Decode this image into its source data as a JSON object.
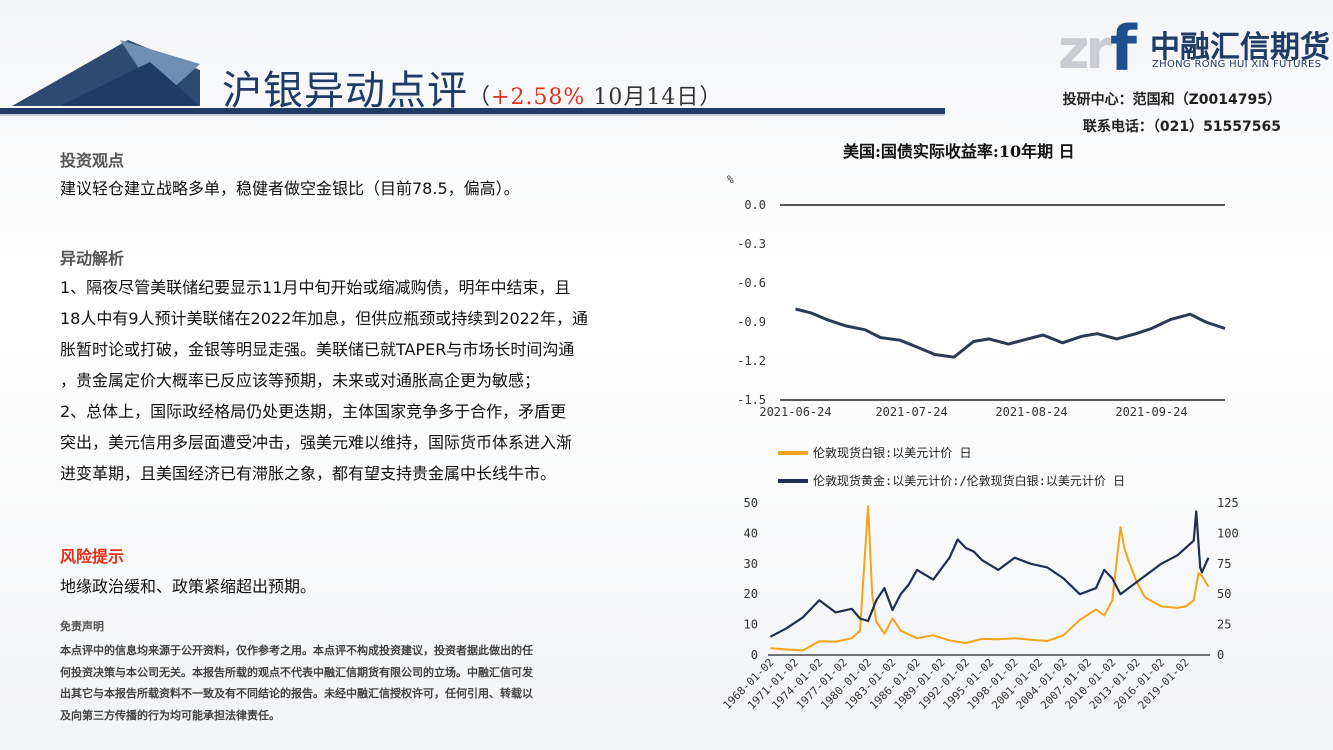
{
  "header": {
    "title": "沪银异动点评",
    "paren_open": "（",
    "change": "+2.58%",
    "date": " 10月14日",
    "paren_close": "）",
    "logo_cn": "中融汇信期货",
    "logo_en": "ZHONG RONG HUI XIN FUTURES",
    "author": "投研中心：范国和（Z0014795）",
    "phone": "联系电话：（021）51557565",
    "colors": {
      "navy": "#1f3b66",
      "accent_red": "#e0301e",
      "gold": "#f5a31a"
    }
  },
  "left": {
    "view_heading": "投资观点",
    "view_text": "建议轻仓建立战略多单，稳健者做空金银比（目前78.5，偏高）。",
    "analysis_heading": "异动解析",
    "analysis_lines": [
      "1、隔夜尽管美联储纪要显示11月中旬开始或缩减购债，明年中结束，且",
      "18人中有9人预计美联储在2022年加息，但供应瓶颈或持续到2022年，通",
      "胀暂时论或打破，金银等明显走强。美联储已就TAPER与市场长时间沟通",
      "，贵金属定价大概率已反应该等预期，未来或对通胀高企更为敏感；",
      "2、总体上，国际政经格局仍处更迭期，主体国家竞争多于合作，矛盾更",
      "突出，美元信用多层面遭受冲击，强美元难以维持，国际货币体系进入渐",
      "进变革期，且美国经济已有滞胀之象，都有望支持贵金属中长线牛市。"
    ],
    "risk_heading": "风险提示",
    "risk_text": "地缘政治缓和、政策紧缩超出预期。",
    "disclaimer_heading": "免责声明",
    "disclaimer_lines": [
      "本点评中的信息均来源于公开资料，仅作参考之用。本点评不构成投资建议，投资者据此做出的任",
      "何投资决策与本公司无关。本报告所载的观点不代表中融汇信期货有限公司的立场。中融汇信可发",
      "出其它与本报告所载资料不一致及有不同结论的报告。未经中融汇信授权许可，任何引用、转载以",
      "及向第三方传播的行为均可能承担法律责任。"
    ]
  },
  "chart_data": [
    {
      "type": "line",
      "title": "美国:国债实际收益率:10年期 日",
      "ylabel": "%",
      "ylim": [
        -1.5,
        0.0
      ],
      "yticks": [
        "0.0",
        "-0.3",
        "-0.6",
        "-0.9",
        "-1.2",
        "-1.5"
      ],
      "xticks": [
        "2021-06-24",
        "2021-07-24",
        "2021-08-24",
        "2021-09-24"
      ],
      "series": [
        {
          "color": "#2b3a55",
          "x": [
            "2021-06-24",
            "2021-06-28",
            "2021-07-02",
            "2021-07-07",
            "2021-07-12",
            "2021-07-16",
            "2021-07-21",
            "2021-07-26",
            "2021-07-30",
            "2021-08-04",
            "2021-08-09",
            "2021-08-13",
            "2021-08-18",
            "2021-08-23",
            "2021-08-27",
            "2021-09-01",
            "2021-09-06",
            "2021-09-10",
            "2021-09-15",
            "2021-09-20",
            "2021-09-24",
            "2021-09-29",
            "2021-10-04",
            "2021-10-08",
            "2021-10-13"
          ],
          "values": [
            -0.8,
            -0.83,
            -0.88,
            -0.93,
            -0.96,
            -1.02,
            -1.04,
            -1.1,
            -1.15,
            -1.17,
            -1.05,
            -1.03,
            -1.07,
            -1.03,
            -1.0,
            -1.06,
            -1.01,
            -0.99,
            -1.03,
            -0.99,
            -0.95,
            -0.88,
            -0.84,
            -0.9,
            -0.95
          ]
        }
      ]
    },
    {
      "type": "line",
      "legend": [
        "伦敦现货白银:以美元计价 日",
        "伦敦现货黄金:以美元计价:/伦敦现货白银:以美元计价 日"
      ],
      "ylim_left": [
        0,
        50
      ],
      "ylim_right": [
        0,
        125
      ],
      "yticks_left": [
        "0",
        "10",
        "20",
        "30",
        "40",
        "50"
      ],
      "yticks_right": [
        "0",
        "25",
        "50",
        "75",
        "100",
        "125"
      ],
      "xticks": [
        "1968-01-02",
        "1971-01-02",
        "1974-01-02",
        "1977-01-02",
        "1980-01-02",
        "1983-01-02",
        "1986-01-02",
        "1989-01-02",
        "1992-01-02",
        "1995-01-02",
        "1998-01-02",
        "2001-01-02",
        "2004-01-02",
        "2007-01-02",
        "2010-01-02",
        "2013-01-02",
        "2016-01-02",
        "2019-01-02"
      ],
      "series": [
        {
          "name": "伦敦现货白银:以美元计价 日",
          "axis": "left",
          "color": "#f5a31a",
          "x": [
            1968,
            1970,
            1972,
            1974,
            1976,
            1978,
            1979,
            1980,
            1980.5,
            1981,
            1982,
            1983,
            1984,
            1986,
            1988,
            1990,
            1992,
            1994,
            1996,
            1998,
            2000,
            2002,
            2004,
            2006,
            2008,
            2009,
            2010,
            2011,
            2011.5,
            2012,
            2013,
            2014,
            2016,
            2018,
            2019,
            2020,
            2020.6,
            2021,
            2021.8
          ],
          "values": [
            2.2,
            1.8,
            1.5,
            4.5,
            4.4,
            5.5,
            8,
            49,
            20,
            11,
            7,
            12,
            8,
            5.5,
            6.5,
            4.8,
            3.9,
            5.3,
            5.2,
            5.5,
            5,
            4.6,
            6.5,
            11.5,
            15,
            13,
            18,
            42,
            35,
            31,
            24,
            19,
            16,
            15.5,
            16,
            18,
            27,
            26,
            22.5
          ]
        },
        {
          "name": "伦敦现货黄金:以美元计价:/伦敦现货白银:以美元计价 日",
          "axis": "right",
          "color": "#1e2f4f",
          "x": [
            1968,
            1970,
            1972,
            1974,
            1976,
            1978,
            1979,
            1980,
            1981,
            1982,
            1983,
            1984,
            1985,
            1986,
            1988,
            1990,
            1991,
            1992,
            1993,
            1994,
            1996,
            1998,
            2000,
            2002,
            2004,
            2006,
            2008,
            2009,
            2010,
            2011,
            2012,
            2014,
            2016,
            2018,
            2019,
            2020,
            2020.3,
            2020.8,
            2021,
            2021.8
          ],
          "values": [
            15,
            22,
            31,
            45,
            35,
            38,
            30,
            28,
            45,
            55,
            37,
            50,
            58,
            70,
            62,
            80,
            95,
            88,
            85,
            78,
            70,
            80,
            75,
            72,
            63,
            50,
            55,
            70,
            63,
            50,
            55,
            65,
            75,
            82,
            88,
            94,
            118,
            72,
            68,
            80
          ]
        }
      ]
    }
  ]
}
